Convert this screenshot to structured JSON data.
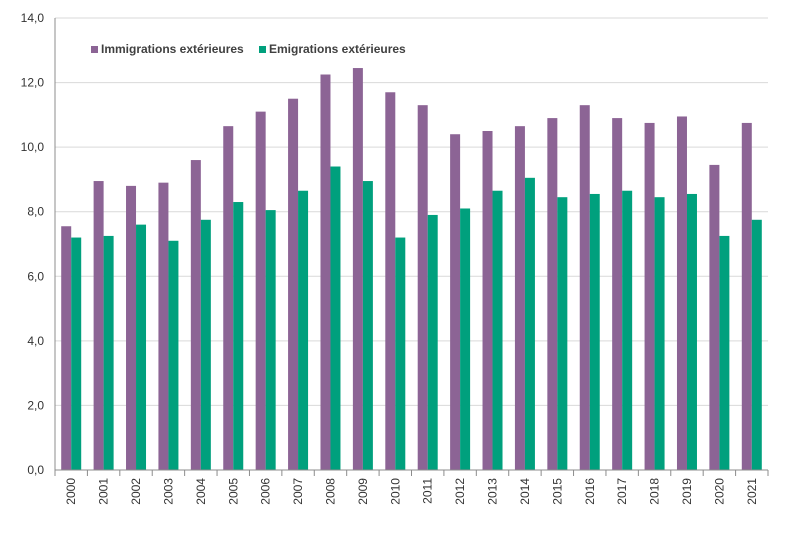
{
  "chart_data": {
    "type": "bar",
    "categories": [
      "2000",
      "2001",
      "2002",
      "2003",
      "2004",
      "2005",
      "2006",
      "2007",
      "2008",
      "2009",
      "2010",
      "2011",
      "2012",
      "2013",
      "2014",
      "2015",
      "2016",
      "2017",
      "2018",
      "2019",
      "2020",
      "2021"
    ],
    "series": [
      {
        "name": "Immigrations extérieures",
        "color": "#8c6495",
        "values": [
          7.55,
          8.95,
          8.8,
          8.9,
          9.6,
          10.65,
          11.1,
          11.5,
          12.25,
          12.45,
          11.7,
          11.3,
          10.4,
          10.5,
          10.65,
          10.9,
          11.3,
          10.9,
          10.75,
          10.95,
          9.45,
          10.75
        ]
      },
      {
        "name": "Emigrations extérieures",
        "color": "#00a07d",
        "values": [
          7.2,
          7.25,
          7.6,
          7.1,
          7.75,
          8.3,
          8.05,
          8.65,
          9.4,
          8.95,
          7.2,
          7.9,
          8.1,
          8.65,
          9.05,
          8.45,
          8.55,
          8.65,
          8.45,
          8.55,
          7.25,
          7.75
        ]
      }
    ],
    "yticks": [
      "0,0",
      "2,0",
      "4,0",
      "6,0",
      "8,0",
      "10,0",
      "12,0",
      "14,0"
    ],
    "ylim": [
      0,
      14
    ],
    "grid": true,
    "legend_position": "top-left",
    "title": "",
    "xlabel": "",
    "ylabel": ""
  }
}
